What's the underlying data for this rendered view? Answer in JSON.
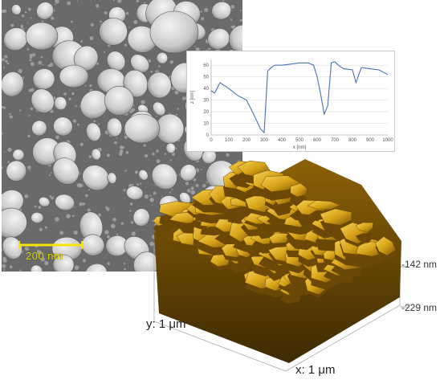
{
  "sem": {
    "scale_bar": "200 nm",
    "scale_bar_color": "#f5e600"
  },
  "profile_plot": {
    "xlabel": "x [nm]",
    "ylabel": "z [nm]",
    "chart_data": {
      "type": "line",
      "x": [
        0,
        20,
        50,
        100,
        150,
        200,
        240,
        280,
        300,
        320,
        340,
        360,
        400,
        450,
        500,
        550,
        580,
        600,
        620,
        640,
        660,
        680,
        700,
        720,
        750,
        800,
        820,
        850,
        900,
        950,
        1000
      ],
      "y": [
        38,
        36,
        45,
        40,
        34,
        30,
        18,
        5,
        2,
        55,
        58,
        60,
        60,
        61,
        62,
        62,
        60,
        50,
        35,
        18,
        25,
        62,
        63,
        60,
        57,
        56,
        45,
        58,
        57,
        56,
        52
      ],
      "xlim": [
        0,
        1000
      ],
      "ylim": [
        0,
        65
      ],
      "x_ticks": [
        "0",
        "100",
        "200",
        "300",
        "400",
        "500",
        "600",
        "700",
        "800",
        "900",
        "1000"
      ],
      "y_ticks": [
        "0",
        "10",
        "20",
        "30",
        "40",
        "50",
        "60"
      ],
      "line_color": "#4a70b5",
      "grid": true
    }
  },
  "afm": {
    "z_top": "-142 nm",
    "z_bottom": "-229 nm",
    "y_axis": "y: 1 μm",
    "x_axis": "x: 1 μm",
    "gold_color": "#d8a318"
  }
}
